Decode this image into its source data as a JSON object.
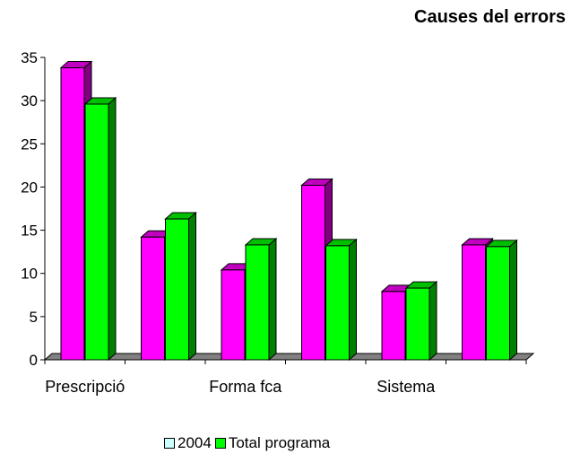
{
  "chart_data": {
    "type": "bar",
    "title": "Causes del errors",
    "categories": [
      "Prescripció",
      "",
      "Forma fca",
      "",
      "Sistema",
      ""
    ],
    "series": [
      {
        "name": "2004",
        "values": [
          33.8,
          14.2,
          10.4,
          20.2,
          7.9,
          13.3
        ],
        "color": "#ff00ff",
        "legend_color": "#ccffff"
      },
      {
        "name": "Total programa",
        "values": [
          29.6,
          16.3,
          13.3,
          13.2,
          8.3,
          13.1
        ],
        "color": "#00ff00",
        "legend_color": "#00ff00"
      }
    ],
    "ylim": [
      0,
      35
    ],
    "yticks": [
      "0",
      "5",
      "10",
      "15",
      "20",
      "25",
      "30",
      "35"
    ],
    "legend": "bottom",
    "grid": false
  }
}
